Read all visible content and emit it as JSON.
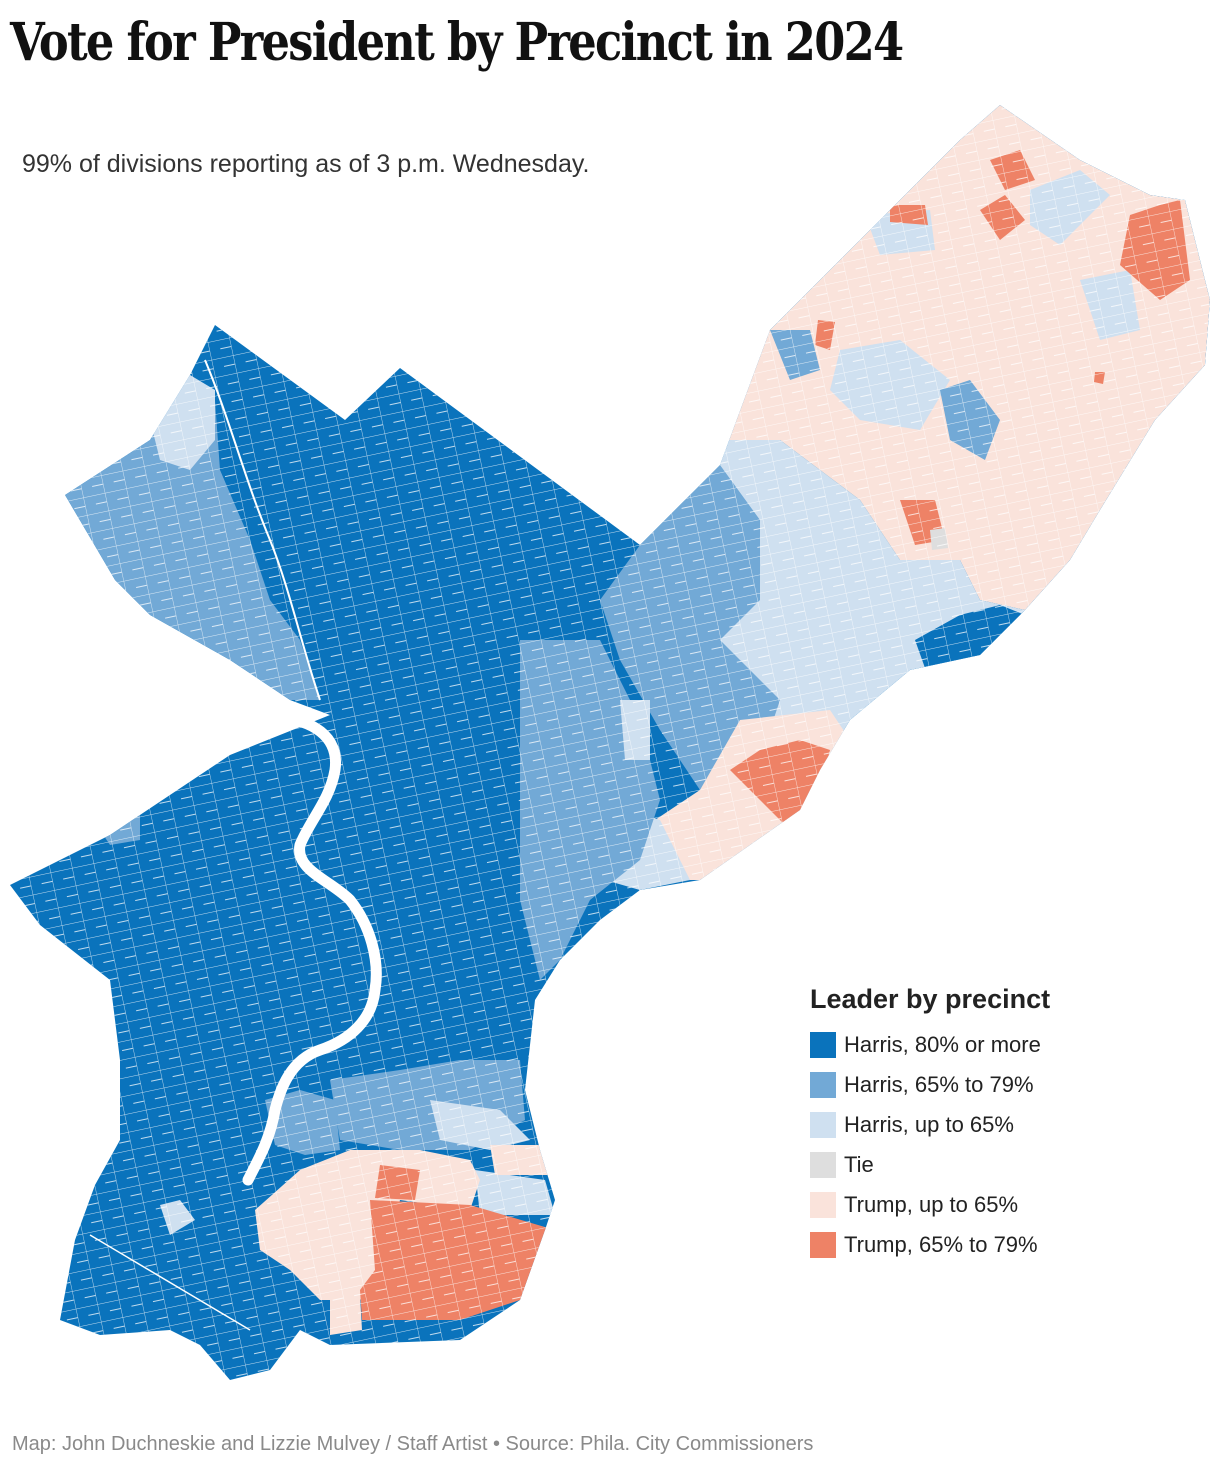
{
  "header": {
    "title": "Vote for President by Precinct in 2024",
    "subtitle": "99% of divisions reporting as of 3 p.m. Wednesday."
  },
  "legend": {
    "title": "Leader by precinct",
    "items": [
      {
        "label": "Harris, 80% or more",
        "color": "#0a73bc"
      },
      {
        "label": "Harris, 65% to 79%",
        "color": "#72a9d6"
      },
      {
        "label": "Harris, up to 65%",
        "color": "#cfe0f0"
      },
      {
        "label": "Tie",
        "color": "#dedede"
      },
      {
        "label": "Trump, up to 65%",
        "color": "#fae3db"
      },
      {
        "label": "Trump, 65% to 79%",
        "color": "#ee8266"
      }
    ]
  },
  "map": {
    "river_color": "#ffffff",
    "precinct_line_color": "#ffffff"
  },
  "footer": {
    "credit": "Map: John Duchneskie and Lizzie Mulvey / Staff Artist • Source: Phila. City Commissioners"
  }
}
